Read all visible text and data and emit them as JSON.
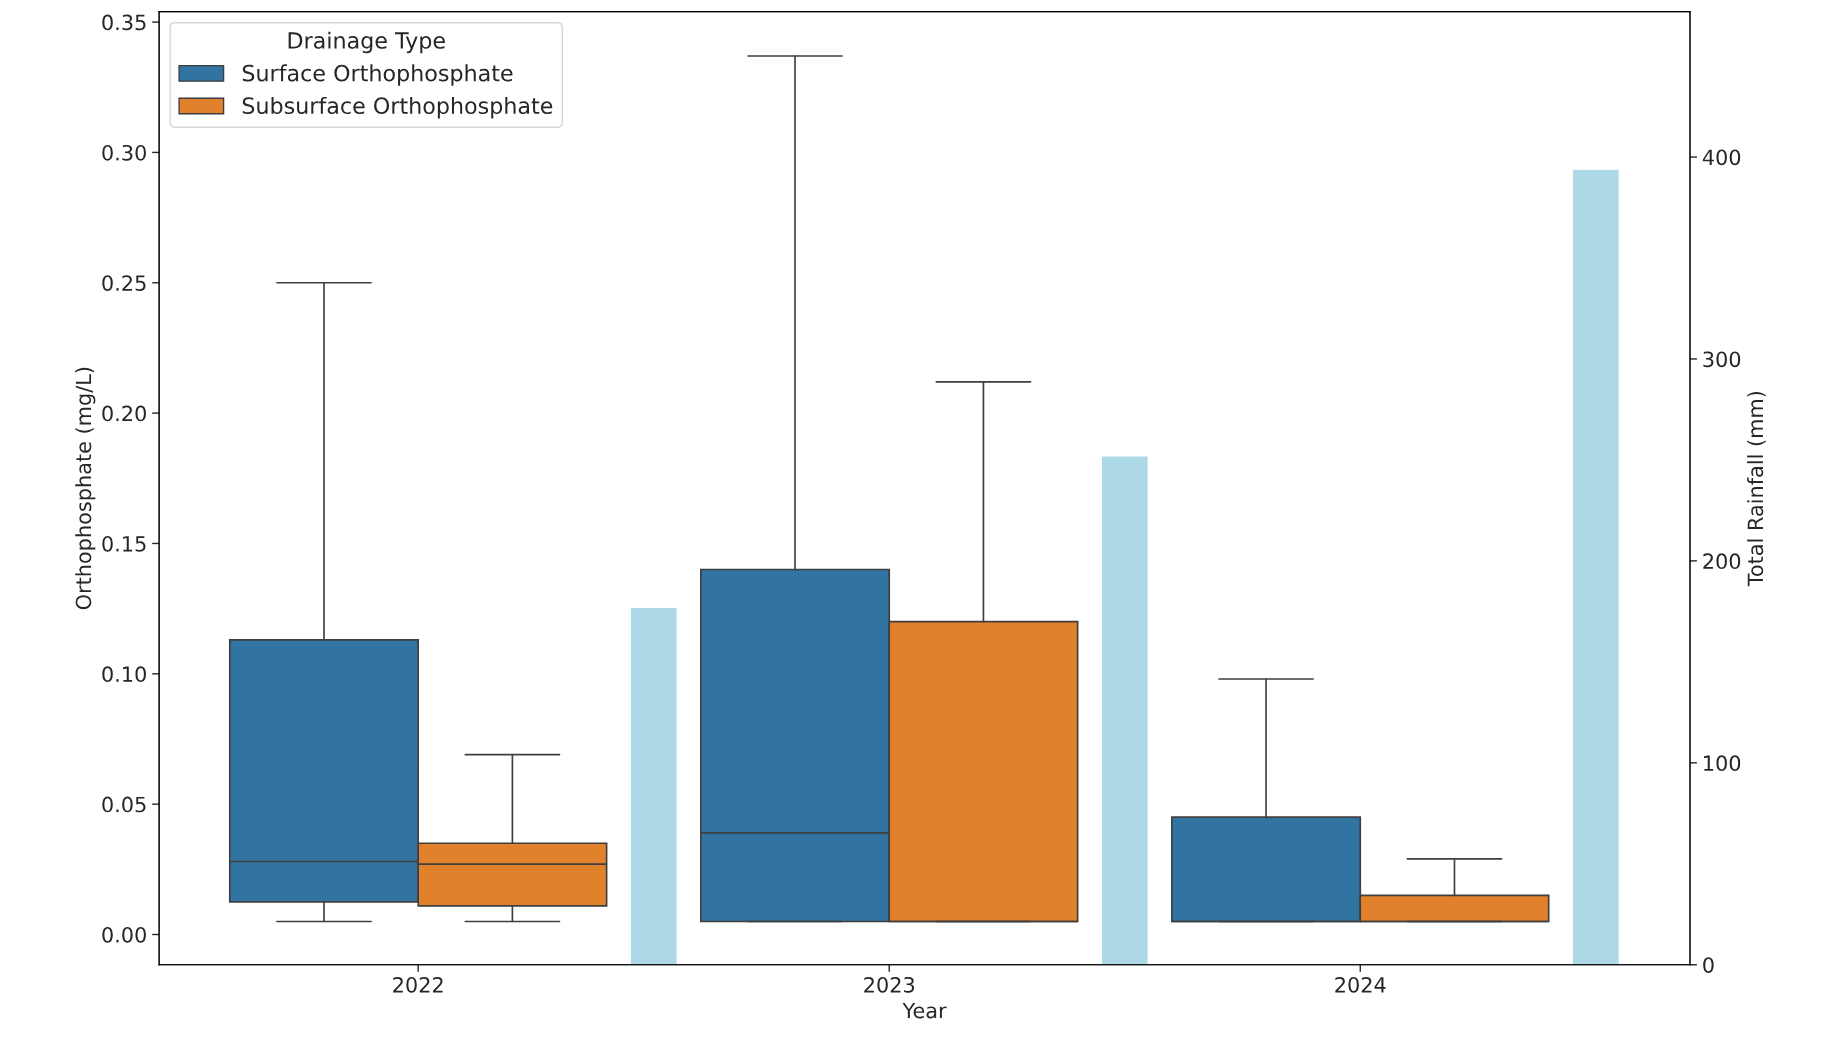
{
  "chart_data": {
    "type": "box",
    "xlabel": "Year",
    "ylabel": "Orthophosphate (mg/L)",
    "y2label": "Total Rainfall (mm)",
    "legend_title": "Drainage Type",
    "legend": "top left",
    "grid": false,
    "categories": [
      "2022",
      "2023",
      "2024"
    ],
    "ylim": [
      -0.0116,
      0.354
    ],
    "yticks": [
      {
        "value": 0,
        "label": "0.00"
      },
      {
        "value": 0.05,
        "label": "0.05"
      },
      {
        "value": 0.1,
        "label": "0.10"
      },
      {
        "value": 0.15,
        "label": "0.15"
      },
      {
        "value": 0.2,
        "label": "0.20"
      },
      {
        "value": 0.25,
        "label": "0.25"
      },
      {
        "value": 0.3,
        "label": "0.30"
      },
      {
        "value": 0.35,
        "label": "0.35"
      }
    ],
    "y2lim": [
      0,
      472
    ],
    "y2ticks": [
      0,
      100,
      200,
      300,
      400
    ],
    "series": [
      {
        "name": "Surface Orthophosphate",
        "color": "#3274a1",
        "boxes": [
          {
            "low": 0.005,
            "q1": 0.0125,
            "median": 0.028,
            "q3": 0.113,
            "high": 0.25
          },
          {
            "low": 0.005,
            "q1": 0.005,
            "median": 0.039,
            "q3": 0.14,
            "high": 0.337
          },
          {
            "low": 0.005,
            "q1": 0.005,
            "median": 0.005,
            "q3": 0.045,
            "high": 0.098
          }
        ]
      },
      {
        "name": "Subsurface Orthophosphate",
        "color": "#e1812c",
        "boxes": [
          {
            "low": 0.005,
            "q1": 0.011,
            "median": 0.027,
            "q3": 0.035,
            "high": 0.069
          },
          {
            "low": 0.005,
            "q1": 0.005,
            "median": 0.005,
            "q3": 0.12,
            "high": 0.212
          },
          {
            "low": 0.005,
            "q1": 0.005,
            "median": 0.005,
            "q3": 0.015,
            "high": 0.029
          }
        ]
      },
      {
        "type": "bar",
        "axis": "y2",
        "color": "#add8e6",
        "values": [
          177,
          252,
          394
        ]
      }
    ]
  }
}
